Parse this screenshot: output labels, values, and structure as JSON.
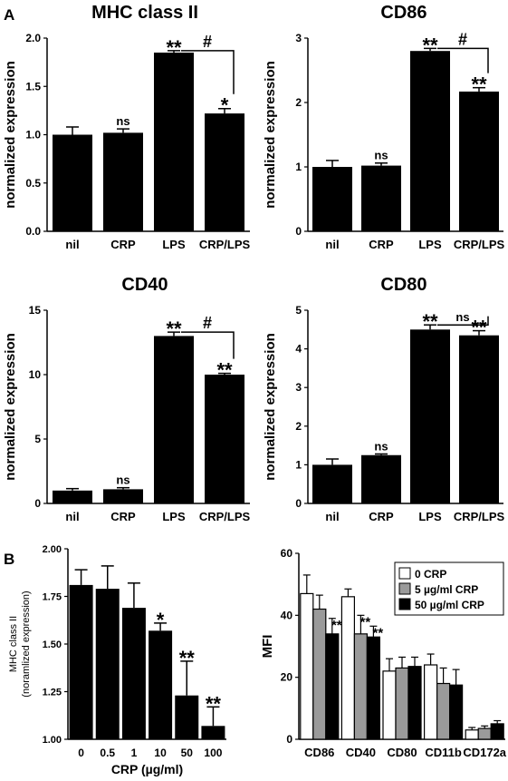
{
  "panel_labels": {
    "a": "A",
    "b": "B"
  },
  "chart_data": [
    {
      "type": "bar",
      "title": "MHC class II",
      "ylabel": "normalized expression",
      "categories": [
        "nil",
        "CRP",
        "LPS",
        "CRP/LPS"
      ],
      "values": [
        1.0,
        1.02,
        1.85,
        1.22
      ],
      "errors": [
        0.08,
        0.04,
        0.02,
        0.05
      ],
      "annotations": [
        "",
        "ns",
        "**",
        "*"
      ],
      "bracket": {
        "from": 2,
        "to": 3,
        "label": "#"
      },
      "ylim": [
        0,
        2.0
      ],
      "yticks": [
        "0.0",
        "0.5",
        "1.0",
        "1.5",
        "2.0"
      ],
      "ytick_values": [
        0,
        0.5,
        1.0,
        1.5,
        2.0
      ]
    },
    {
      "type": "bar",
      "title": "CD86",
      "ylabel": "normalized expression",
      "categories": [
        "nil",
        "CRP",
        "LPS",
        "CRP/LPS"
      ],
      "values": [
        1.0,
        1.02,
        2.8,
        2.17
      ],
      "errors": [
        0.1,
        0.04,
        0.04,
        0.06
      ],
      "annotations": [
        "",
        "ns",
        "**",
        "**"
      ],
      "bracket": {
        "from": 2,
        "to": 3,
        "label": "#"
      },
      "ylim": [
        0,
        3
      ],
      "yticks": [
        "0",
        "1",
        "2",
        "3"
      ],
      "ytick_values": [
        0,
        1,
        2,
        3
      ]
    },
    {
      "type": "bar",
      "title": "CD40",
      "ylabel": "normalized expression",
      "categories": [
        "nil",
        "CRP",
        "LPS",
        "CRP/LPS"
      ],
      "values": [
        1.0,
        1.1,
        13.0,
        10.0
      ],
      "errors": [
        0.15,
        0.12,
        0.3,
        0.1
      ],
      "annotations": [
        "",
        "ns",
        "**",
        "**"
      ],
      "bracket": {
        "from": 2,
        "to": 3,
        "label": "#"
      },
      "ylim": [
        0,
        15
      ],
      "yticks": [
        "0",
        "5",
        "10",
        "15"
      ],
      "ytick_values": [
        0,
        5,
        10,
        15
      ]
    },
    {
      "type": "bar",
      "title": "CD80",
      "ylabel": "normalized expression",
      "categories": [
        "nil",
        "CRP",
        "LPS",
        "CRP/LPS"
      ],
      "values": [
        1.0,
        1.25,
        4.5,
        4.35
      ],
      "errors": [
        0.15,
        0.03,
        0.12,
        0.12
      ],
      "annotations": [
        "",
        "ns",
        "**",
        "**"
      ],
      "bracket": {
        "from": 2,
        "to": 3,
        "label": "ns"
      },
      "ylim": [
        0,
        5
      ],
      "yticks": [
        "0",
        "1",
        "2",
        "3",
        "4",
        "5"
      ],
      "ytick_values": [
        0,
        1,
        2,
        3,
        4,
        5
      ]
    },
    {
      "type": "bar",
      "title": "",
      "ylabel": "MHC class II",
      "ylabel2": "(noramlized expression)",
      "xlabel": "CRP (µg/ml)",
      "categories": [
        "0",
        "0.5",
        "1",
        "10",
        "50",
        "100"
      ],
      "values": [
        1.81,
        1.79,
        1.69,
        1.57,
        1.23,
        1.07
      ],
      "errors": [
        0.08,
        0.12,
        0.13,
        0.04,
        0.18,
        0.1
      ],
      "annotations": [
        "",
        "",
        "",
        "*",
        "**",
        "**"
      ],
      "ylim": [
        1.0,
        2.0
      ],
      "yticks": [
        "1.00",
        "1.25",
        "1.50",
        "1.75",
        "2.00"
      ],
      "ytick_values": [
        1.0,
        1.25,
        1.5,
        1.75,
        2.0
      ]
    },
    {
      "type": "bar",
      "title": "",
      "ylabel": "MFI",
      "categories": [
        "CD86",
        "CD40",
        "CD80",
        "CD11b",
        "CD172a"
      ],
      "series": [
        {
          "name": "0 CRP",
          "color": "#ffffff",
          "values": [
            47,
            46,
            22,
            24,
            3
          ],
          "errors": [
            6,
            2.5,
            4,
            3.5,
            0.8
          ]
        },
        {
          "name": "5 µg/ml CRP",
          "color": "#9a9a9a",
          "values": [
            42,
            34,
            23,
            18,
            3.5
          ],
          "errors": [
            4.5,
            6,
            3.5,
            5,
            0.8
          ]
        },
        {
          "name": "50 µg/ml CRP",
          "color": "#000000",
          "values": [
            34,
            33,
            23.5,
            17.5,
            5
          ],
          "errors": [
            5,
            3.5,
            3,
            5,
            1
          ]
        }
      ],
      "annotations": [
        [
          "",
          "",
          "**"
        ],
        [
          "",
          "**",
          "**"
        ],
        [
          "",
          "",
          ""
        ],
        [
          "",
          "",
          ""
        ],
        [
          "",
          "",
          ""
        ]
      ],
      "legend_placement": "top-right",
      "ylim": [
        0,
        60
      ],
      "yticks": [
        "0",
        "20",
        "40",
        "60"
      ],
      "ytick_values": [
        0,
        20,
        40,
        60
      ]
    }
  ]
}
